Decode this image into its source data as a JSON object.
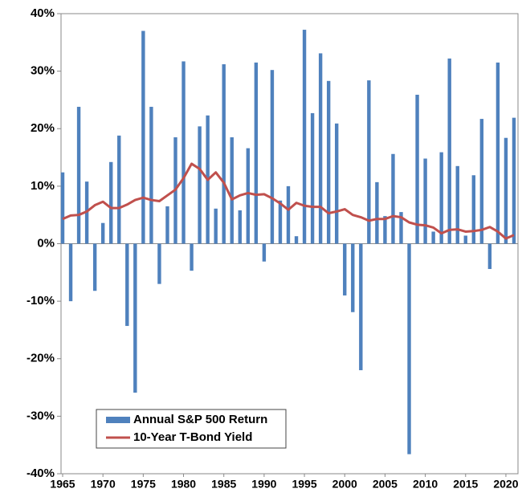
{
  "chart_data": {
    "type": "bar",
    "x": [
      1965,
      1966,
      1967,
      1968,
      1969,
      1970,
      1971,
      1972,
      1973,
      1974,
      1975,
      1976,
      1977,
      1978,
      1979,
      1980,
      1981,
      1982,
      1983,
      1984,
      1985,
      1986,
      1987,
      1988,
      1989,
      1990,
      1991,
      1992,
      1993,
      1994,
      1995,
      1996,
      1997,
      1998,
      1999,
      2000,
      2001,
      2002,
      2003,
      2004,
      2005,
      2006,
      2007,
      2008,
      2009,
      2010,
      2011,
      2012,
      2013,
      2014,
      2015,
      2016,
      2017,
      2018,
      2019,
      2020,
      2021
    ],
    "series": [
      {
        "name": "Annual S&P 500 Return",
        "type": "bar",
        "color": "#4f81bd",
        "values": [
          12.4,
          -10.0,
          23.8,
          10.8,
          -8.2,
          3.6,
          14.2,
          18.8,
          -14.3,
          -25.9,
          37.0,
          23.8,
          -7.0,
          6.5,
          18.5,
          31.7,
          -4.7,
          20.4,
          22.3,
          6.1,
          31.2,
          18.5,
          5.8,
          16.6,
          31.5,
          -3.1,
          30.2,
          7.5,
          10.0,
          1.3,
          37.2,
          22.7,
          33.1,
          28.3,
          20.9,
          -9.0,
          -11.9,
          -22.0,
          28.4,
          10.7,
          4.8,
          15.6,
          5.5,
          -36.6,
          25.9,
          14.8,
          2.1,
          15.9,
          32.2,
          13.5,
          1.4,
          11.9,
          21.7,
          -4.4,
          31.5,
          18.4,
          21.9
        ]
      },
      {
        "name": "10-Year T-Bond Yield",
        "type": "line",
        "color": "#c0504d",
        "values": [
          4.3,
          4.9,
          5.0,
          5.6,
          6.7,
          7.3,
          6.2,
          6.2,
          6.8,
          7.6,
          8.0,
          7.6,
          7.4,
          8.4,
          9.4,
          11.4,
          13.9,
          13.0,
          11.1,
          12.4,
          10.6,
          7.7,
          8.4,
          8.8,
          8.5,
          8.6,
          7.9,
          7.0,
          5.9,
          7.1,
          6.6,
          6.4,
          6.4,
          5.3,
          5.6,
          6.0,
          5.0,
          4.6,
          4.0,
          4.3,
          4.3,
          4.8,
          4.6,
          3.7,
          3.3,
          3.2,
          2.8,
          1.8,
          2.4,
          2.5,
          2.1,
          2.2,
          2.4,
          2.9,
          2.1,
          0.9,
          1.5
        ]
      }
    ],
    "xlim": [
      1964.8,
      2021.5
    ],
    "xticks": [
      1965,
      1970,
      1975,
      1980,
      1985,
      1990,
      1995,
      2000,
      2005,
      2010,
      2015,
      2020
    ],
    "ylim": [
      -40,
      40
    ],
    "yticks": [
      {
        "value": -40,
        "label": "-40%"
      },
      {
        "value": -30,
        "label": "-30%"
      },
      {
        "value": -20,
        "label": "-20%"
      },
      {
        "value": -10,
        "label": "-10%"
      },
      {
        "value": 0,
        "label": "0%"
      },
      {
        "value": 10,
        "label": "10%"
      },
      {
        "value": 20,
        "label": "20%"
      },
      {
        "value": 30,
        "label": "30%"
      },
      {
        "value": 40,
        "label": "40%"
      }
    ],
    "legend": "lower left"
  }
}
